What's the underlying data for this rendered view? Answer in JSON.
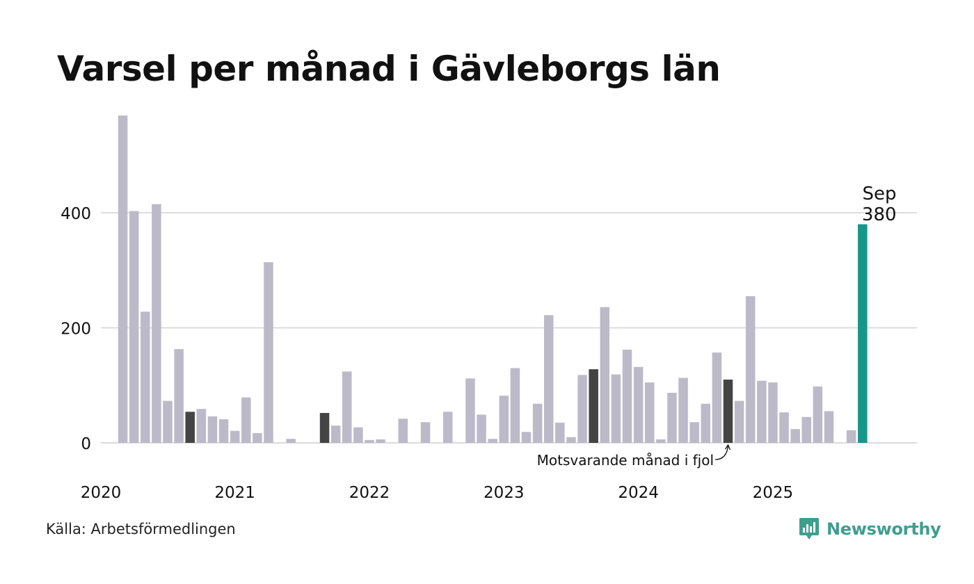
{
  "title": "Varsel per månad i Gävleborgs län",
  "source": "Källa: Arbetsförmedlingen",
  "brand": "Newsworthy",
  "colors": {
    "bar": "#bcbac8",
    "comparison": "#444444",
    "highlight": "#17968a",
    "grid": "#dcdce0",
    "brand": "#3f9e8e"
  },
  "chart_data": {
    "type": "bar",
    "title": "Varsel per månad i Gävleborgs län",
    "xlabel": "",
    "ylabel": "",
    "ylim": [
      0,
      570
    ],
    "yticks": [
      0,
      200,
      400
    ],
    "x_tick_labels": [
      "2020",
      "2021",
      "2022",
      "2023",
      "2024",
      "2025"
    ],
    "categories": [
      "2020-03",
      "2020-04",
      "2020-05",
      "2020-06",
      "2020-07",
      "2020-08",
      "2020-09",
      "2020-10",
      "2020-11",
      "2020-12",
      "2021-01",
      "2021-02",
      "2021-03",
      "2021-04",
      "2021-05",
      "2021-06",
      "2021-07",
      "2021-08",
      "2021-09",
      "2021-10",
      "2021-11",
      "2021-12",
      "2022-01",
      "2022-02",
      "2022-03",
      "2022-04",
      "2022-05",
      "2022-06",
      "2022-07",
      "2022-08",
      "2022-09",
      "2022-10",
      "2022-11",
      "2022-12",
      "2023-01",
      "2023-02",
      "2023-03",
      "2023-04",
      "2023-05",
      "2023-06",
      "2023-07",
      "2023-08",
      "2023-09",
      "2023-10",
      "2023-11",
      "2023-12",
      "2024-01",
      "2024-02",
      "2024-03",
      "2024-04",
      "2024-05",
      "2024-06",
      "2024-07",
      "2024-08",
      "2024-09",
      "2024-10",
      "2024-11",
      "2024-12",
      "2025-01",
      "2025-02",
      "2025-03",
      "2025-04",
      "2025-05",
      "2025-06",
      "2025-07",
      "2025-08",
      "2025-09"
    ],
    "values": [
      569,
      403,
      228,
      415,
      73,
      163,
      54,
      59,
      46,
      41,
      21,
      79,
      17,
      314,
      0,
      7,
      0,
      0,
      52,
      30,
      124,
      27,
      5,
      6,
      0,
      42,
      0,
      36,
      0,
      54,
      0,
      112,
      49,
      7,
      82,
      130,
      19,
      68,
      222,
      35,
      10,
      118,
      128,
      236,
      119,
      162,
      132,
      105,
      6,
      87,
      113,
      36,
      68,
      157,
      110,
      73,
      255,
      108,
      105,
      53,
      24,
      45,
      98,
      55,
      0,
      22,
      380
    ],
    "comparison_months": [
      "2020-09",
      "2021-09",
      "2023-09",
      "2024-09"
    ],
    "highlight": {
      "month": "2025-09",
      "label": "Sep",
      "value_label": "380"
    },
    "annotation": {
      "text": "Motsvarande månad i fjol",
      "target": "2024-09"
    }
  }
}
